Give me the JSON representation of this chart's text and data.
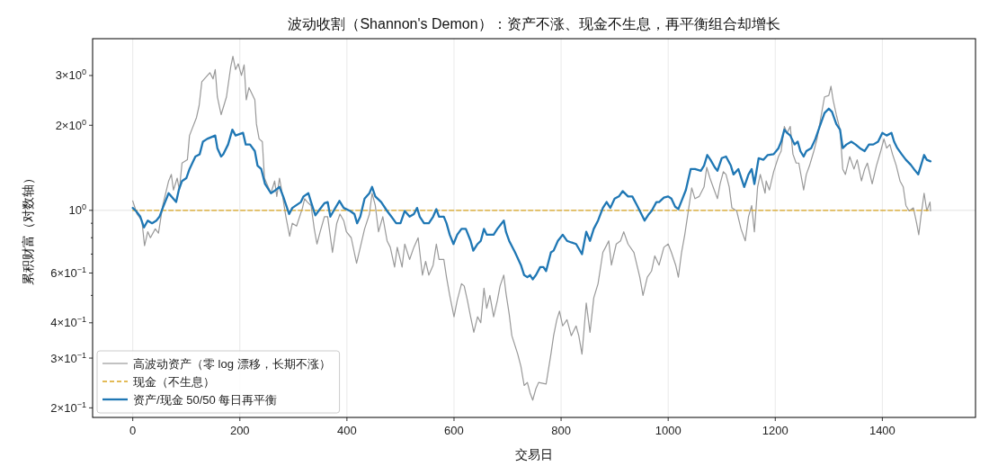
{
  "chart_data": {
    "type": "line",
    "title": "波动收割（Shannon's Demon）：资产不涨、现金不生息，再平衡组合却增长",
    "xlabel": "交易日",
    "ylabel": "累积财富（对数轴）",
    "xlim": [
      -75,
      1574
    ],
    "xticks": [
      0,
      200,
      400,
      600,
      800,
      1000,
      1200,
      1400
    ],
    "ylim": [
      0.185,
      4.05
    ],
    "yticks": [
      {
        "value": 0.2,
        "label": "2×10$^{−1}$"
      },
      {
        "value": 0.3,
        "label": "3×10$^{−1}$"
      },
      {
        "value": 0.4,
        "label": "4×10$^{−1}$"
      },
      {
        "value": 0.5,
        "label": null
      },
      {
        "value": 0.6,
        "label": "6×10$^{−1}$"
      },
      {
        "value": 0.7,
        "label": null
      },
      {
        "value": 0.8,
        "label": null
      },
      {
        "value": 0.9,
        "label": null
      },
      {
        "value": 1,
        "label": "10$^{0}$"
      },
      {
        "value": 2,
        "label": "2×10$^{0}$"
      },
      {
        "value": 3,
        "label": "3×10$^{0}$"
      }
    ],
    "log": true,
    "grid": "x",
    "legend": "bottom left",
    "marker": "none",
    "ref_lines": [
      {
        "axis": "y",
        "value": 1,
        "color": "#dddddd"
      }
    ],
    "series": [
      {
        "name": "高波动资产（零 log 漂移，长期不涨）",
        "color": "#999999",
        "line_style": "solid",
        "x": [
          0,
          8,
          17,
          22,
          28,
          33,
          42,
          48,
          56,
          67,
          72,
          76,
          83,
          87,
          92,
          102,
          106,
          119,
          124,
          129,
          144,
          150,
          154,
          158,
          165,
          175,
          183,
          187,
          192,
          197,
          203,
          208,
          212,
          217,
          228,
          231,
          236,
          242,
          246,
          258,
          265,
          269,
          274,
          278,
          286,
          293,
          298,
          306,
          317,
          321,
          326,
          333,
          339,
          344,
          350,
          358,
          364,
          373,
          381,
          387,
          394,
          399,
          408,
          418,
          425,
          433,
          442,
          447,
          453,
          459,
          467,
          475,
          481,
          489,
          494,
          503,
          508,
          517,
          525,
          533,
          541,
          547,
          553,
          561,
          567,
          572,
          581,
          586,
          592,
          600,
          606,
          614,
          619,
          625,
          631,
          637,
          644,
          650,
          656,
          661,
          667,
          674,
          681,
          686,
          693,
          697,
          703,
          708,
          719,
          725,
          731,
          737,
          742,
          747,
          753,
          758,
          772,
          781,
          786,
          792,
          797,
          803,
          811,
          819,
          828,
          833,
          839,
          847,
          854,
          861,
          869,
          878,
          883,
          889,
          894,
          903,
          911,
          917,
          925,
          936,
          947,
          953,
          961,
          969,
          975,
          983,
          992,
          1000,
          1006,
          1014,
          1019,
          1025,
          1031,
          1036,
          1044,
          1050,
          1058,
          1067,
          1072,
          1078,
          1086,
          1092,
          1097,
          1103,
          1108,
          1114,
          1119,
          1128,
          1136,
          1144,
          1150,
          1156,
          1161,
          1167,
          1172,
          1181,
          1183,
          1189,
          1197,
          1206,
          1211,
          1217,
          1222,
          1228,
          1233,
          1239,
          1244,
          1253,
          1258,
          1264,
          1272,
          1278,
          1286,
          1292,
          1300,
          1304,
          1308,
          1314,
          1321,
          1326,
          1331,
          1339,
          1347,
          1353,
          1361,
          1367,
          1372,
          1381,
          1389,
          1397,
          1403,
          1408,
          1414,
          1419,
          1426,
          1433,
          1439,
          1444,
          1450,
          1458,
          1464,
          1468,
          1472,
          1478,
          1483,
          1489,
          1490
        ],
        "values": [
          1.08,
          0.97,
          0.92,
          0.75,
          0.84,
          0.8,
          0.86,
          0.83,
          1.04,
          1.27,
          1.34,
          1.18,
          1.3,
          1.18,
          1.47,
          1.51,
          1.84,
          2.13,
          2.35,
          2.85,
          3.07,
          2.92,
          3.15,
          2.52,
          2.18,
          2.52,
          3.22,
          3.51,
          3.15,
          3.3,
          3.0,
          3.27,
          2.46,
          2.72,
          2.46,
          2.02,
          1.79,
          1.75,
          1.3,
          1.15,
          1.27,
          1.12,
          1.3,
          1.18,
          0.95,
          0.81,
          0.9,
          0.88,
          1.02,
          1.1,
          1.07,
          1.04,
          0.86,
          0.76,
          0.84,
          0.95,
          0.95,
          0.71,
          0.9,
          0.97,
          0.92,
          0.84,
          0.8,
          0.65,
          0.74,
          0.86,
          0.97,
          1.15,
          1.04,
          0.84,
          0.95,
          0.78,
          0.74,
          0.63,
          0.74,
          0.63,
          0.76,
          0.67,
          0.74,
          0.8,
          0.59,
          0.66,
          0.59,
          0.64,
          0.76,
          0.67,
          0.67,
          0.58,
          0.5,
          0.42,
          0.48,
          0.55,
          0.54,
          0.48,
          0.42,
          0.37,
          0.42,
          0.4,
          0.53,
          0.45,
          0.5,
          0.42,
          0.48,
          0.54,
          0.59,
          0.51,
          0.43,
          0.36,
          0.31,
          0.28,
          0.24,
          0.246,
          0.226,
          0.213,
          0.234,
          0.246,
          0.243,
          0.31,
          0.36,
          0.41,
          0.44,
          0.39,
          0.41,
          0.36,
          0.39,
          0.36,
          0.31,
          0.47,
          0.37,
          0.49,
          0.55,
          0.71,
          0.74,
          0.78,
          0.64,
          0.76,
          0.78,
          0.84,
          0.76,
          0.71,
          0.58,
          0.5,
          0.58,
          0.61,
          0.69,
          0.64,
          0.74,
          0.76,
          0.71,
          0.64,
          0.58,
          0.71,
          0.82,
          0.95,
          1.2,
          1.1,
          1.12,
          1.21,
          1.42,
          1.3,
          1.18,
          1.1,
          1.24,
          1.37,
          1.34,
          1.21,
          1.02,
          0.995,
          0.86,
          0.78,
          0.95,
          1.04,
          0.84,
          1.21,
          1.34,
          1.15,
          1.27,
          1.18,
          1.37,
          1.55,
          1.62,
          1.98,
          1.88,
          1.98,
          1.58,
          1.47,
          1.47,
          1.18,
          1.34,
          1.44,
          1.62,
          1.79,
          2.18,
          2.52,
          2.55,
          2.75,
          2.46,
          2.18,
          1.93,
          1.4,
          1.34,
          1.55,
          1.4,
          1.51,
          1.27,
          1.4,
          1.47,
          1.24,
          1.44,
          1.62,
          1.79,
          1.66,
          1.71,
          1.58,
          1.44,
          1.27,
          1.21,
          1.04,
          0.995,
          1.02,
          0.9,
          0.82,
          0.95,
          1.15,
          0.995,
          1.07,
          0.995
        ]
      },
      {
        "name": "现金（不生息）",
        "color": "#daa520",
        "line_style": "dashed",
        "x": [
          0,
          1490
        ],
        "values": [
          1,
          1
        ]
      },
      {
        "name": "资产/现金 50/50 每日再平衡",
        "color": "#1f77b4",
        "line_style": "solid",
        "x": [
          0,
          6,
          14,
          21,
          28,
          36,
          44,
          50,
          56,
          67,
          72,
          81,
          86,
          92,
          100,
          106,
          117,
          125,
          131,
          139,
          154,
          158,
          165,
          169,
          178,
          186,
          192,
          206,
          211,
          219,
          228,
          233,
          240,
          247,
          258,
          267,
          274,
          281,
          292,
          298,
          314,
          319,
          328,
          333,
          341,
          347,
          358,
          364,
          369,
          375,
          386,
          394,
          406,
          414,
          419,
          425,
          433,
          442,
          447,
          453,
          464,
          475,
          483,
          492,
          500,
          508,
          517,
          525,
          531,
          536,
          544,
          553,
          561,
          567,
          572,
          581,
          586,
          592,
          599,
          606,
          614,
          622,
          631,
          636,
          644,
          650,
          656,
          661,
          674,
          681,
          693,
          697,
          703,
          714,
          725,
          731,
          737,
          742,
          747,
          753,
          761,
          767,
          772,
          781,
          786,
          794,
          803,
          811,
          819,
          828,
          839,
          847,
          854,
          861,
          869,
          878,
          885,
          892,
          900,
          908,
          915,
          925,
          933,
          942,
          950,
          956,
          964,
          969,
          978,
          983,
          992,
          1000,
          1006,
          1013,
          1019,
          1025,
          1033,
          1042,
          1050,
          1061,
          1067,
          1073,
          1079,
          1087,
          1092,
          1100,
          1108,
          1117,
          1122,
          1131,
          1142,
          1150,
          1156,
          1161,
          1169,
          1178,
          1186,
          1197,
          1206,
          1211,
          1217,
          1222,
          1228,
          1236,
          1242,
          1247,
          1253,
          1258,
          1267,
          1275,
          1283,
          1292,
          1300,
          1306,
          1314,
          1321,
          1326,
          1333,
          1342,
          1350,
          1358,
          1367,
          1375,
          1383,
          1392,
          1400,
          1408,
          1417,
          1422,
          1428,
          1436,
          1444,
          1453,
          1459,
          1467,
          1472,
          1478,
          1483,
          1490
        ],
        "values": [
          1.02,
          0.995,
          0.95,
          0.87,
          0.92,
          0.9,
          0.92,
          0.95,
          1.02,
          1.15,
          1.12,
          1.07,
          1.18,
          1.27,
          1.3,
          1.4,
          1.55,
          1.58,
          1.75,
          1.79,
          1.84,
          1.66,
          1.55,
          1.58,
          1.71,
          1.93,
          1.84,
          1.88,
          1.71,
          1.71,
          1.62,
          1.44,
          1.4,
          1.24,
          1.15,
          1.18,
          1.21,
          1.12,
          0.97,
          1.02,
          1.07,
          1.12,
          1.15,
          1.07,
          0.96,
          0.995,
          1.06,
          1.07,
          0.95,
          0.995,
          1.08,
          1.02,
          0.995,
          0.97,
          0.9,
          0.95,
          1.1,
          1.15,
          1.21,
          1.12,
          1.07,
          0.995,
          0.95,
          0.9,
          0.9,
          0.995,
          0.95,
          0.97,
          1.02,
          0.95,
          0.9,
          0.9,
          0.95,
          1.01,
          0.95,
          0.95,
          0.9,
          0.82,
          0.76,
          0.82,
          0.86,
          0.86,
          0.78,
          0.72,
          0.76,
          0.78,
          0.86,
          0.82,
          0.82,
          0.86,
          0.92,
          0.84,
          0.78,
          0.71,
          0.64,
          0.59,
          0.58,
          0.59,
          0.57,
          0.59,
          0.63,
          0.63,
          0.61,
          0.71,
          0.72,
          0.78,
          0.82,
          0.78,
          0.77,
          0.76,
          0.7,
          0.84,
          0.78,
          0.86,
          0.92,
          1.02,
          1.07,
          1.02,
          1.1,
          1.12,
          1.17,
          1.12,
          1.12,
          1.04,
          0.97,
          0.92,
          0.97,
          0.995,
          1.07,
          1.07,
          1.11,
          1.12,
          1.1,
          1.03,
          1.01,
          1.08,
          1.18,
          1.4,
          1.4,
          1.38,
          1.44,
          1.57,
          1.51,
          1.42,
          1.38,
          1.53,
          1.55,
          1.44,
          1.34,
          1.4,
          1.21,
          1.34,
          1.4,
          1.24,
          1.53,
          1.51,
          1.57,
          1.58,
          1.66,
          1.75,
          1.93,
          1.88,
          1.84,
          1.71,
          1.75,
          1.62,
          1.55,
          1.62,
          1.66,
          1.79,
          1.98,
          2.21,
          2.29,
          2.23,
          2.02,
          1.93,
          1.66,
          1.71,
          1.75,
          1.71,
          1.66,
          1.62,
          1.71,
          1.71,
          1.75,
          1.88,
          1.84,
          1.88,
          1.75,
          1.66,
          1.58,
          1.51,
          1.45,
          1.4,
          1.34,
          1.44,
          1.57,
          1.51,
          1.49
        ]
      }
    ]
  }
}
